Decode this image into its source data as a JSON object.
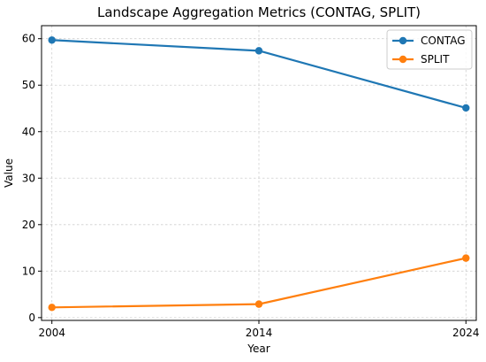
{
  "chart_data": {
    "type": "line",
    "title": "Landscape Aggregation Metrics (CONTAG, SPLIT)",
    "xlabel": "Year",
    "ylabel": "Value",
    "x": [
      2004,
      2014,
      2024
    ],
    "x_tick_labels": [
      "2004",
      "2014",
      "2024"
    ],
    "xlim": [
      2003.5,
      2024.5
    ],
    "ylim": [
      -0.6,
      62.8
    ],
    "y_ticks": [
      0,
      10,
      20,
      30,
      40,
      50,
      60
    ],
    "y_tick_labels": [
      "0",
      "10",
      "20",
      "30",
      "40",
      "50",
      "60"
    ],
    "grid": true,
    "legend_position": "top-right",
    "series": [
      {
        "name": "CONTAG",
        "values": [
          59.7,
          57.4,
          45.1
        ],
        "color": "#1f77b4"
      },
      {
        "name": "SPLIT",
        "values": [
          2.2,
          2.9,
          12.8
        ],
        "color": "#ff7f0e"
      }
    ]
  }
}
